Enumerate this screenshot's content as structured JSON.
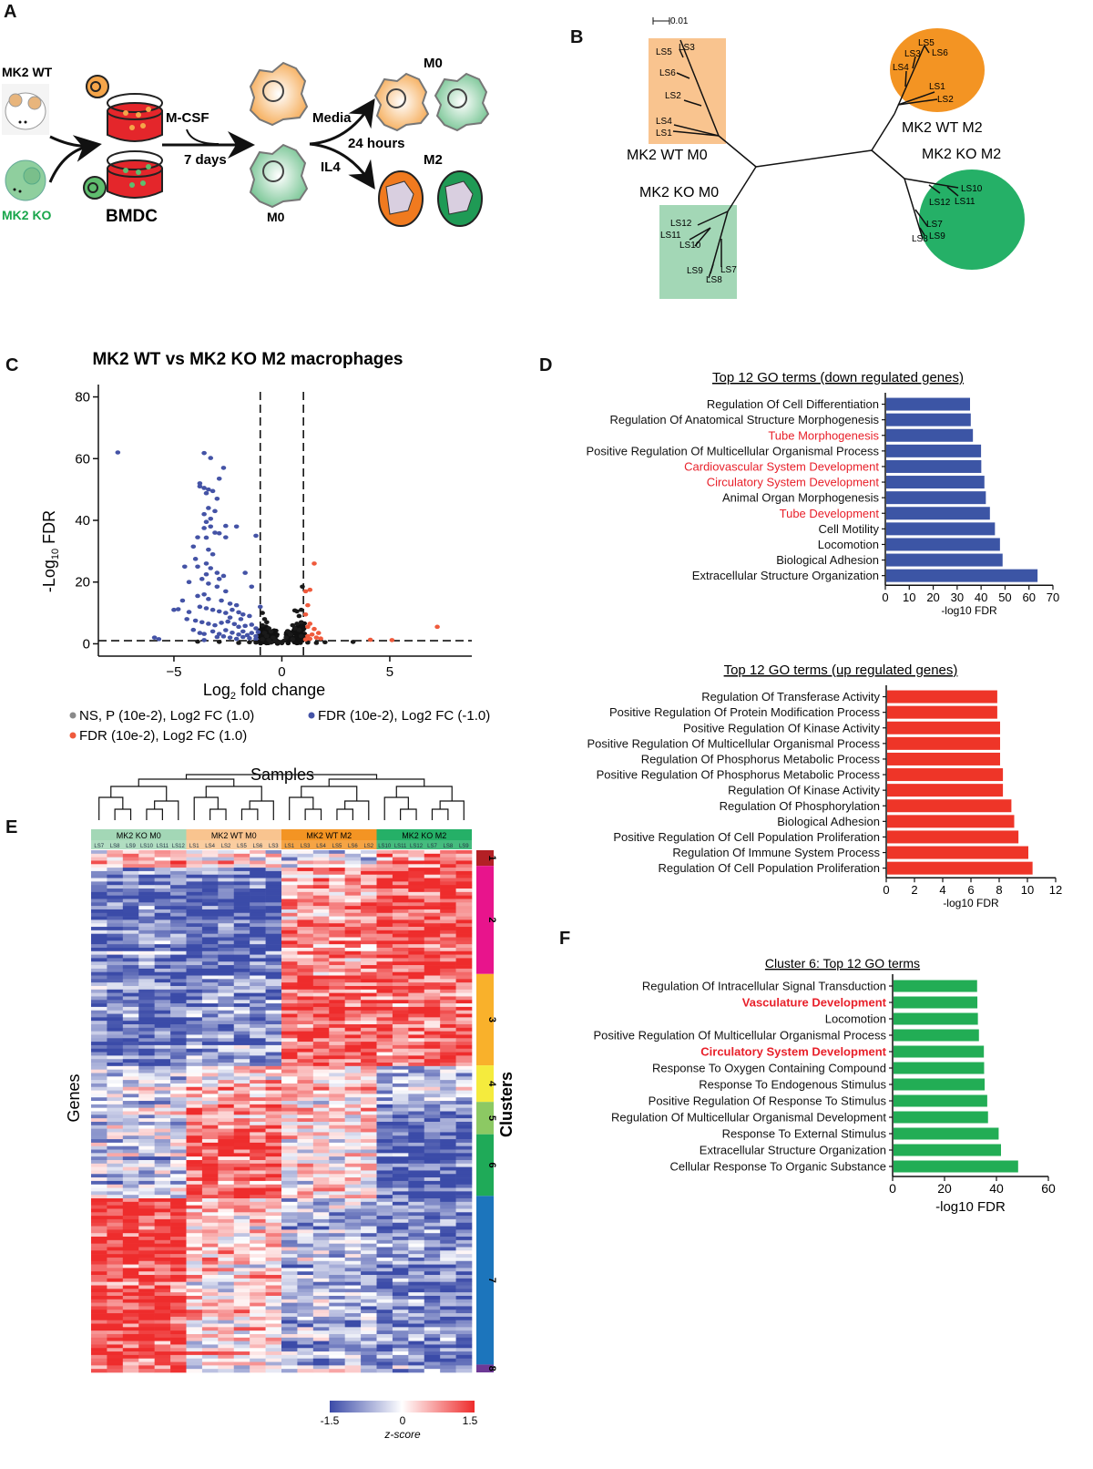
{
  "panels": {
    "A": {
      "letter": "A",
      "mouse_wt_label": "MK2 WT",
      "mouse_ko_label": "MK2 KO",
      "bmdc_label": "BMDC",
      "mcsf_label": "M-CSF",
      "days_label": "7 days",
      "m0_label": "M0",
      "media_label": "Media",
      "hours_label": "24 hours",
      "il4_label": "IL4",
      "m0_out_label": "M0",
      "m2_out_label": "M2",
      "colors": {
        "wt": "#f5a54a",
        "ko": "#6cc08b",
        "dish": "#e4262b"
      }
    },
    "B": {
      "letter": "B",
      "scale_label": "0.01",
      "groups": [
        {
          "name": "MK2 WT M0",
          "color": "#f9c48f",
          "leaves": [
            "LS5",
            "LS3",
            "LS6",
            "LS2",
            "LS4",
            "LS1"
          ]
        },
        {
          "name": "MK2 KO M0",
          "color": "#a3d7b6",
          "leaves": [
            "LS12",
            "LS11",
            "LS10",
            "LS7",
            "LS9",
            "LS8"
          ]
        },
        {
          "name": "MK2 WT M2",
          "color": "#f39423",
          "leaves": [
            "LS5",
            "LS3",
            "LS6",
            "LS4",
            "LS1",
            "LS2"
          ]
        },
        {
          "name": "MK2 KO M2",
          "color": "#25b067",
          "leaves": [
            "LS10",
            "LS12",
            "LS11",
            "LS7",
            "LS8",
            "LS9"
          ]
        }
      ]
    },
    "C": {
      "letter": "C"
    },
    "D": {
      "letter": "D"
    },
    "E": {
      "letter": "E",
      "samples_title": "Samples",
      "genes_label": "Genes",
      "clusters_label": "Clusters",
      "groups": [
        {
          "name": "MK2 KO M0",
          "color": "#a3d7b6",
          "samples": [
            "LS7",
            "LS8",
            "LS9",
            "LS10",
            "LS11",
            "LS12"
          ]
        },
        {
          "name": "MK2 WT M0",
          "color": "#f9c48f",
          "samples": [
            "LS1",
            "LS4",
            "LS2",
            "LS5",
            "LS6",
            "LS3"
          ]
        },
        {
          "name": "MK2 WT M2",
          "color": "#f39423",
          "samples": [
            "LS1",
            "LS3",
            "LS4",
            "LS5",
            "LS6",
            "LS2"
          ]
        },
        {
          "name": "MK2 KO M2",
          "color": "#25b067",
          "samples": [
            "LS10",
            "LS11",
            "LS12",
            "LS7",
            "LS8",
            "LS9"
          ]
        }
      ],
      "clusters": [
        {
          "id": "1",
          "color": "#b32025",
          "fraction": 0.03
        },
        {
          "id": "2",
          "color": "#e8148c",
          "fraction": 0.207
        },
        {
          "id": "3",
          "color": "#f9b12b",
          "fraction": 0.175
        },
        {
          "id": "4",
          "color": "#f5eb3d",
          "fraction": 0.07
        },
        {
          "id": "5",
          "color": "#8cc963",
          "fraction": 0.062
        },
        {
          "id": "6",
          "color": "#1faa58",
          "fraction": 0.118
        },
        {
          "id": "7",
          "color": "#1c75bc",
          "fraction": 0.323
        },
        {
          "id": "8",
          "color": "#6d3996",
          "fraction": 0.015
        }
      ],
      "colorbar": {
        "min_label": "-1.5",
        "mid_label": "0",
        "max_label": "1.5",
        "title": "z-score",
        "min_color": "#3b4ba8",
        "mid_color": "#ffffff",
        "max_color": "#ee2c2c"
      }
    },
    "F": {
      "letter": "F"
    }
  },
  "chart_data": [
    {
      "id": "volcano",
      "type": "scatter",
      "title": "MK2 WT vs MK2 KO M2 macrophages",
      "xlabel": "Log2 fold change",
      "ylabel": "-Log10 FDR",
      "xlim": [
        -8.5,
        8.8
      ],
      "ylim": [
        -4,
        84
      ],
      "xticks": [
        -5,
        0,
        5
      ],
      "yticks": [
        0,
        20,
        40,
        60,
        80
      ],
      "thresholds": {
        "log2fc": [
          -1,
          1
        ],
        "neglog10fdr": 1
      },
      "legend": [
        {
          "label": "NS, P (10e-2), Log2 FC (1.0)",
          "color": "#8a8a8a"
        },
        {
          "label": "FDR (10e-2), Log2 FC (-1.0)",
          "color": "#4453a6"
        },
        {
          "label": "FDR (10e-2), Log2 FC (1.0)",
          "color": "#ef5a3c"
        }
      ],
      "series": [
        {
          "name": "down",
          "color": "#4453a6",
          "points": [
            [
              -7.6,
              62
            ],
            [
              -3.6,
              61.8
            ],
            [
              -3.3,
              60.2
            ],
            [
              -2.7,
              57
            ],
            [
              -2.9,
              53.5
            ],
            [
              -3.8,
              52
            ],
            [
              -3.8,
              51
            ],
            [
              -3.6,
              50.5
            ],
            [
              -3.4,
              50
            ],
            [
              -3.2,
              49.5
            ],
            [
              -3.5,
              48.8
            ],
            [
              -3.0,
              47
            ],
            [
              -3.4,
              44
            ],
            [
              -3.6,
              42
            ],
            [
              -3.1,
              43
            ],
            [
              -3.3,
              40.5
            ],
            [
              -3.5,
              39.5
            ],
            [
              -3.3,
              38
            ],
            [
              -2.6,
              38.2
            ],
            [
              -2.1,
              38
            ],
            [
              -3.6,
              37.5
            ],
            [
              -2.9,
              35.8
            ],
            [
              -3.1,
              36
            ],
            [
              -3.9,
              34.5
            ],
            [
              -3.5,
              34.4
            ],
            [
              -2.6,
              34.5
            ],
            [
              -1.2,
              35
            ],
            [
              -4.1,
              31.5
            ],
            [
              -3.4,
              30.5
            ],
            [
              -3.2,
              29
            ],
            [
              -4.0,
              27.5
            ],
            [
              -3.5,
              26
            ],
            [
              -3.3,
              24.5
            ],
            [
              -4.5,
              25
            ],
            [
              -3.9,
              25
            ],
            [
              -3.5,
              22.5
            ],
            [
              -3.0,
              23
            ],
            [
              -2.7,
              22
            ],
            [
              -2.9,
              21
            ],
            [
              -1.7,
              23
            ],
            [
              -4.3,
              20
            ],
            [
              -3.7,
              21
            ],
            [
              -3.4,
              19.5
            ],
            [
              -3.0,
              18.5
            ],
            [
              -2.6,
              17
            ],
            [
              -3.6,
              16
            ],
            [
              -3.9,
              15.5
            ],
            [
              -3.4,
              14.5
            ],
            [
              -2.8,
              14
            ],
            [
              -2.4,
              13
            ],
            [
              -2.1,
              12.5
            ],
            [
              -1.4,
              18.5
            ],
            [
              -1.0,
              12
            ],
            [
              -4.6,
              14
            ],
            [
              -5.0,
              11
            ],
            [
              -4.8,
              11.2
            ],
            [
              -4.3,
              10.3
            ],
            [
              -3.8,
              12
            ],
            [
              -3.5,
              11.5
            ],
            [
              -3.2,
              11
            ],
            [
              -2.9,
              10.5
            ],
            [
              -2.6,
              10
            ],
            [
              -2.3,
              11
            ],
            [
              -2.0,
              10.2
            ],
            [
              -1.8,
              9.5
            ],
            [
              -1.5,
              9
            ],
            [
              -4.4,
              8
            ],
            [
              -4.0,
              7.5
            ],
            [
              -3.7,
              7
            ],
            [
              -3.4,
              6.5
            ],
            [
              -3.1,
              6
            ],
            [
              -2.8,
              6.8
            ],
            [
              -2.5,
              7.2
            ],
            [
              -2.2,
              6.4
            ],
            [
              -2.0,
              5.5
            ],
            [
              -1.7,
              5.8
            ],
            [
              -1.4,
              6.2
            ],
            [
              -1.2,
              5
            ],
            [
              -4.1,
              4.5
            ],
            [
              -3.8,
              3.5
            ],
            [
              -3.6,
              3.2
            ],
            [
              -3.2,
              4
            ],
            [
              -2.9,
              3.2
            ],
            [
              -2.6,
              4.4
            ],
            [
              -2.3,
              3.6
            ],
            [
              -2.0,
              3
            ],
            [
              -1.8,
              4
            ],
            [
              -1.6,
              2.8
            ],
            [
              -1.4,
              3.5
            ],
            [
              -1.2,
              2.5
            ],
            [
              -1.1,
              3.8
            ],
            [
              -3.0,
              2.2
            ],
            [
              -2.7,
              2.4
            ],
            [
              -2.4,
              2
            ],
            [
              -2.1,
              1.6
            ],
            [
              -1.8,
              2.2
            ],
            [
              -1.5,
              1.8
            ],
            [
              -1.2,
              1.6
            ],
            [
              -5.9,
              2
            ],
            [
              -5.7,
              1.5
            ],
            [
              -3.6,
              1.2
            ],
            [
              -2.4,
              8.5
            ],
            [
              -1.9,
              8
            ]
          ]
        },
        {
          "name": "ns",
          "color": "#1a1a1a",
          "points": [
            [
              -0.9,
              10
            ],
            [
              -0.8,
              8
            ],
            [
              -0.7,
              7
            ],
            [
              -0.9,
              6
            ],
            [
              -0.6,
              5
            ],
            [
              -0.5,
              4
            ],
            [
              -0.8,
              3.5
            ],
            [
              -0.7,
              2.5
            ],
            [
              -0.4,
              2
            ],
            [
              -0.6,
              1.2
            ],
            [
              -0.3,
              1
            ],
            [
              -0.2,
              0.6
            ],
            [
              -0.9,
              1.5
            ],
            [
              -0.5,
              0.4
            ],
            [
              0.95,
              18.5
            ],
            [
              0.9,
              11
            ],
            [
              0.7,
              10.5
            ],
            [
              0.6,
              10.8
            ],
            [
              0.8,
              9
            ],
            [
              0.9,
              7
            ],
            [
              0.7,
              6.5
            ],
            [
              0.5,
              6
            ],
            [
              0.6,
              5
            ],
            [
              0.3,
              4
            ],
            [
              0.4,
              3
            ],
            [
              0.2,
              2
            ],
            [
              0.8,
              4.5
            ],
            [
              0.5,
              1.5
            ],
            [
              0.1,
              1
            ],
            [
              0.9,
              2.5
            ],
            [
              -1.5,
              0.5
            ],
            [
              -2.0,
              0.3
            ],
            [
              -2.9,
              0.6
            ],
            [
              -3.9,
              0.7
            ],
            [
              -1.2,
              0.4
            ],
            [
              1.2,
              0.4
            ],
            [
              1.6,
              0.3
            ],
            [
              2.0,
              0.5
            ],
            [
              3.3,
              0.6
            ],
            [
              0.0,
              0.2
            ],
            [
              -0.1,
              0.5
            ]
          ]
        },
        {
          "name": "up",
          "color": "#ef5a3c",
          "points": [
            [
              1.5,
              26
            ],
            [
              1.3,
              17.5
            ],
            [
              1.1,
              17
            ],
            [
              1.2,
              12.5
            ],
            [
              1.1,
              9.5
            ],
            [
              1.3,
              6.5
            ],
            [
              1.2,
              5.5
            ],
            [
              1.5,
              4.8
            ],
            [
              1.7,
              3.5
            ],
            [
              1.4,
              3
            ],
            [
              1.2,
              2.5
            ],
            [
              1.6,
              2
            ],
            [
              1.8,
              1.7
            ],
            [
              1.3,
              1.6
            ],
            [
              1.1,
              1.4
            ],
            [
              4.1,
              1.3
            ],
            [
              5.1,
              1.2
            ],
            [
              7.2,
              5.5
            ]
          ]
        }
      ]
    },
    {
      "id": "go-down",
      "type": "bar",
      "orientation": "horizontal",
      "title": "Top 12 GO terms (down regulated genes)",
      "xlabel": "-log10 FDR",
      "xlim": [
        0,
        70
      ],
      "xticks": [
        0,
        10,
        20,
        30,
        40,
        50,
        60,
        70
      ],
      "bar_color": "#3c55a5",
      "categories": [
        "Regulation Of Cell Differentiation",
        "Regulation Of Anatomical Structure Morphogenesis",
        "Tube Morphogenesis",
        "Positive Regulation Of Multicellular Organismal Process",
        "Cardiovascular System Development",
        "Circulatory System Development",
        "Animal Organ Morphogenesis",
        "Tube Development",
        "Cell Motility",
        "Locomotion",
        "Biological Adhesion",
        "Extracellular Structure Organization"
      ],
      "highlighted": [
        false,
        false,
        true,
        false,
        true,
        true,
        false,
        true,
        false,
        false,
        false,
        false
      ],
      "values": [
        35.0,
        35.3,
        36.2,
        39.6,
        39.7,
        41.0,
        41.6,
        43.3,
        45.4,
        47.5,
        48.6,
        63.2
      ]
    },
    {
      "id": "go-up",
      "type": "bar",
      "orientation": "horizontal",
      "title": "Top 12 GO terms (up regulated genes)",
      "xlabel": "-log10 FDR",
      "xlim": [
        0,
        12
      ],
      "xticks": [
        0,
        2,
        4,
        6,
        8,
        10,
        12
      ],
      "bar_color": "#ee3528",
      "categories": [
        "Regulation Of Transferase Activity",
        "Positive Regulation Of Protein Modification Process",
        "Positive Regulation Of Kinase Activity",
        "Positive Regulation Of Multicellular Organismal Process",
        "Regulation Of Phosphorus Metabolic Process",
        "Positive Regulation Of Phosphorus Metabolic Process",
        "Regulation Of Kinase Activity",
        "Regulation Of Phosphorylation",
        "Biological Adhesion",
        "Positive Regulation Of Cell Population Proliferation",
        "Regulation Of Immune System Process",
        "Regulation Of Cell Population Proliferation"
      ],
      "highlighted": [
        false,
        false,
        false,
        false,
        false,
        false,
        false,
        false,
        false,
        false,
        false,
        false
      ],
      "values": [
        7.8,
        7.8,
        8.0,
        8.0,
        8.0,
        8.2,
        8.2,
        8.8,
        9.0,
        9.3,
        10.0,
        10.3
      ]
    },
    {
      "id": "go-cluster6",
      "type": "bar",
      "orientation": "horizontal",
      "title": "Cluster 6: Top 12 GO terms",
      "xlabel": "-log10 FDR",
      "xlim": [
        0,
        60
      ],
      "xticks": [
        0,
        20,
        40,
        60
      ],
      "bar_color": "#22ad55",
      "categories": [
        "Regulation Of Intracellular Signal Transduction",
        "Vasculature Development",
        "Locomotion",
        "Positive Regulation Of Multicellular Organismal Process",
        "Circulatory System Development",
        "Response To Oxygen Containing Compound",
        "Response To Endogenous Stimulus",
        "Positive Regulation Of Response To Stimulus",
        "Regulation Of Multicellular Organismal Development",
        "Response To External Stimulus",
        "Extracellular Structure Organization",
        "Cellular Response To Organic Substance"
      ],
      "highlighted": [
        false,
        true,
        false,
        false,
        true,
        false,
        false,
        false,
        false,
        false,
        false,
        false
      ],
      "values": [
        32.2,
        32.3,
        32.5,
        32.9,
        34.8,
        34.9,
        35.1,
        36.1,
        36.4,
        40.5,
        41.4,
        48.0
      ]
    }
  ]
}
